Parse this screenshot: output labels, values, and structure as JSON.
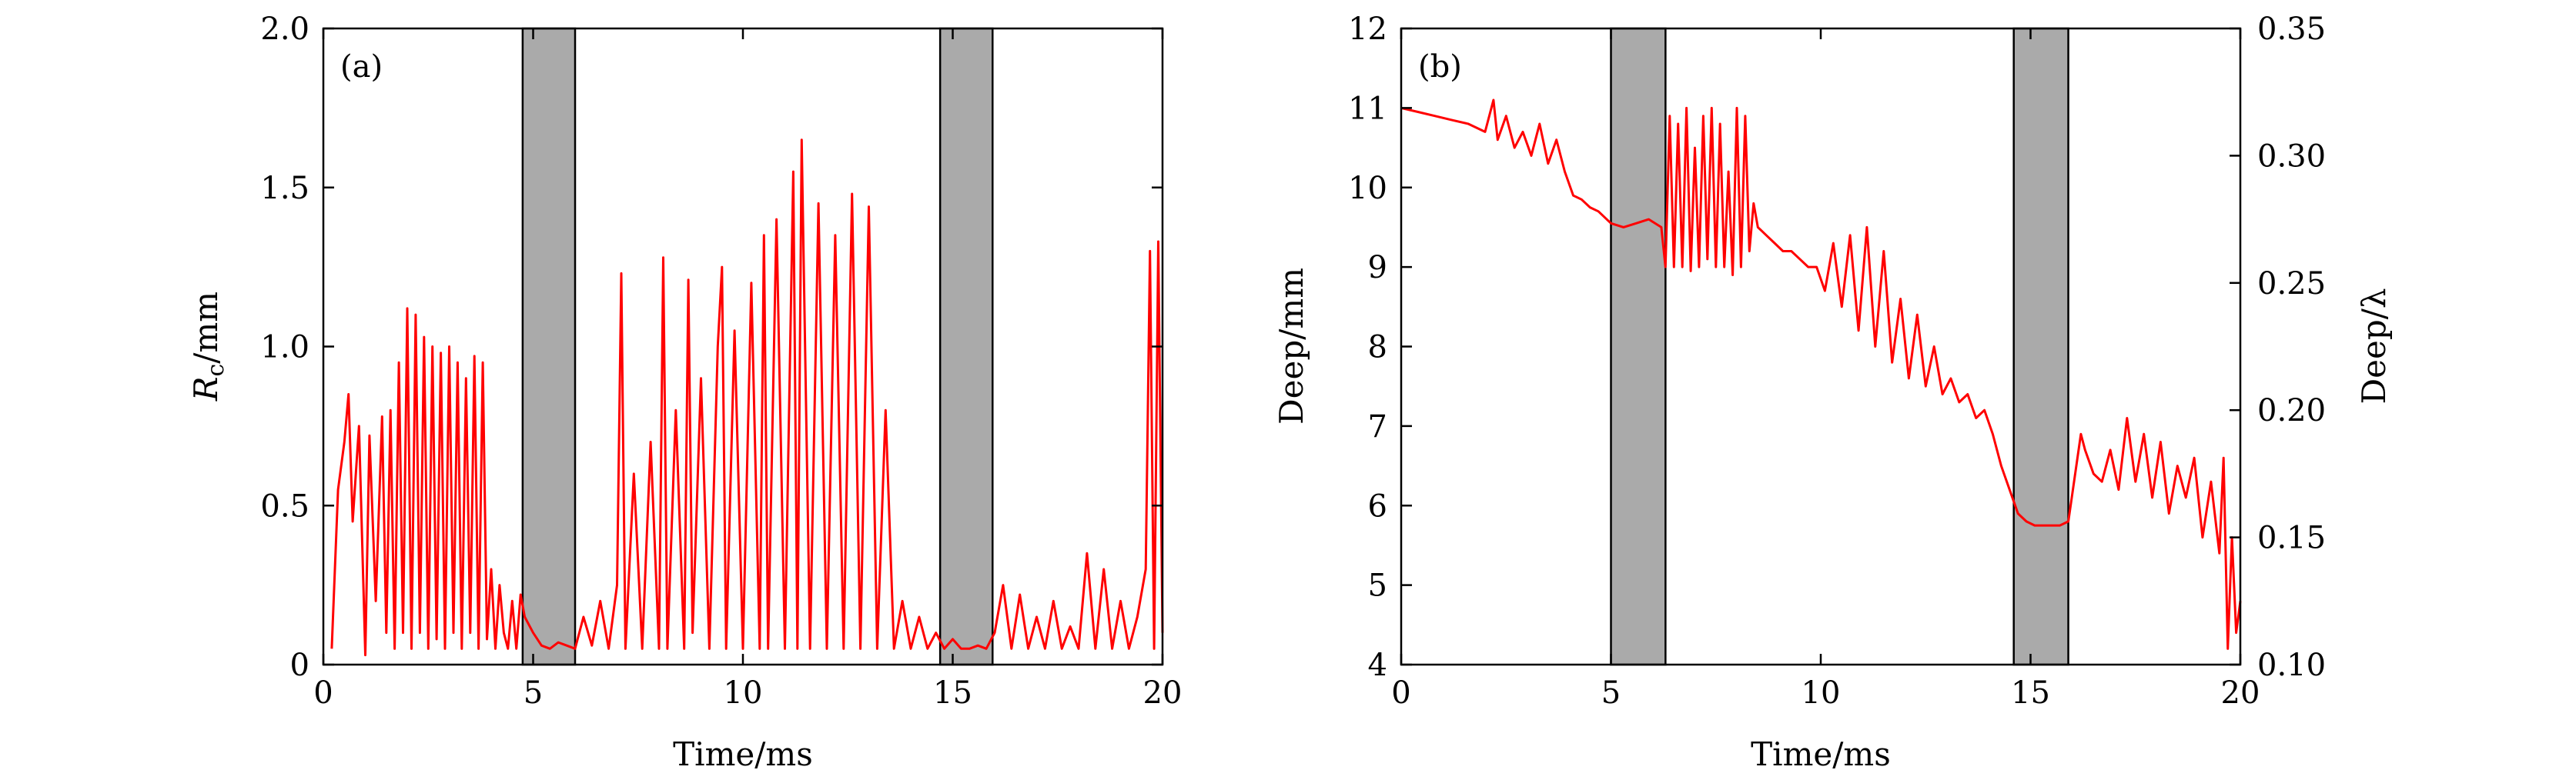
{
  "chart_data": [
    {
      "type": "line",
      "panel_label": "(a)",
      "xlabel": "Time/ms",
      "ylabel_main": "R",
      "ylabel_sub": "c",
      "ylabel_unit": "/mm",
      "xlim": [
        0,
        20
      ],
      "ylim": [
        0,
        2.0
      ],
      "xticks": [
        "0",
        "5",
        "10",
        "15",
        "20"
      ],
      "yticks": [
        "0",
        "0.5",
        "1.0",
        "1.5",
        "2.0"
      ],
      "shaded_regions": [
        [
          4.75,
          6.0
        ],
        [
          14.7,
          15.95
        ]
      ],
      "grid": false,
      "series": [
        {
          "color": "#ff0000",
          "x": [
            0.2,
            0.35,
            0.5,
            0.6,
            0.7,
            0.85,
            1.0,
            1.1,
            1.25,
            1.4,
            1.5,
            1.6,
            1.7,
            1.8,
            1.9,
            2.0,
            2.1,
            2.2,
            2.3,
            2.4,
            2.5,
            2.6,
            2.7,
            2.8,
            2.9,
            3.0,
            3.1,
            3.2,
            3.3,
            3.4,
            3.5,
            3.6,
            3.7,
            3.8,
            3.9,
            4.0,
            4.1,
            4.2,
            4.3,
            4.4,
            4.5,
            4.6,
            4.7,
            4.8,
            5.0,
            5.2,
            5.4,
            5.6,
            5.8,
            6.0,
            6.2,
            6.4,
            6.6,
            6.8,
            7.0,
            7.1,
            7.2,
            7.4,
            7.6,
            7.8,
            8.0,
            8.1,
            8.2,
            8.4,
            8.6,
            8.7,
            8.8,
            9.0,
            9.2,
            9.4,
            9.5,
            9.6,
            9.8,
            10.0,
            10.2,
            10.4,
            10.5,
            10.6,
            10.8,
            11.0,
            11.2,
            11.3,
            11.4,
            11.6,
            11.8,
            12.0,
            12.2,
            12.4,
            12.6,
            12.8,
            13.0,
            13.2,
            13.4,
            13.6,
            13.8,
            14.0,
            14.2,
            14.4,
            14.6,
            14.8,
            15.0,
            15.2,
            15.4,
            15.6,
            15.8,
            16.0,
            16.2,
            16.4,
            16.6,
            16.8,
            17.0,
            17.2,
            17.4,
            17.6,
            17.8,
            18.0,
            18.2,
            18.4,
            18.6,
            18.8,
            19.0,
            19.2,
            19.4,
            19.6,
            19.7,
            19.8,
            19.9,
            20.0
          ],
          "y": [
            0.05,
            0.55,
            0.7,
            0.85,
            0.45,
            0.75,
            0.03,
            0.72,
            0.2,
            0.78,
            0.1,
            0.8,
            0.05,
            0.95,
            0.1,
            1.12,
            0.05,
            1.1,
            0.1,
            1.03,
            0.05,
            1.0,
            0.08,
            0.98,
            0.05,
            1.0,
            0.1,
            0.95,
            0.05,
            0.9,
            0.1,
            0.97,
            0.05,
            0.95,
            0.08,
            0.3,
            0.05,
            0.25,
            0.1,
            0.05,
            0.2,
            0.05,
            0.22,
            0.15,
            0.1,
            0.06,
            0.05,
            0.07,
            0.06,
            0.05,
            0.15,
            0.06,
            0.2,
            0.05,
            0.25,
            1.23,
            0.05,
            0.6,
            0.05,
            0.7,
            0.05,
            1.28,
            0.05,
            0.8,
            0.05,
            1.21,
            0.1,
            0.9,
            0.05,
            1.0,
            1.25,
            0.05,
            1.05,
            0.05,
            1.2,
            0.05,
            1.35,
            0.05,
            1.4,
            0.05,
            1.55,
            0.05,
            1.65,
            0.05,
            1.45,
            0.05,
            1.35,
            0.05,
            1.48,
            0.05,
            1.44,
            0.05,
            0.8,
            0.05,
            0.2,
            0.05,
            0.15,
            0.05,
            0.1,
            0.05,
            0.08,
            0.05,
            0.05,
            0.06,
            0.05,
            0.1,
            0.25,
            0.05,
            0.22,
            0.05,
            0.15,
            0.05,
            0.2,
            0.05,
            0.12,
            0.05,
            0.35,
            0.05,
            0.3,
            0.05,
            0.2,
            0.05,
            0.15,
            0.3,
            1.3,
            0.05,
            1.33,
            0.1
          ]
        }
      ]
    },
    {
      "type": "line",
      "panel_label": "(b)",
      "xlabel": "Time/ms",
      "ylabel_left": "Deep/mm",
      "ylabel_right": "Deep/λ",
      "xlim": [
        0,
        20
      ],
      "ylim_left": [
        4,
        12
      ],
      "ylim_right": [
        0.1,
        0.35
      ],
      "xticks": [
        "0",
        "5",
        "10",
        "15",
        "20"
      ],
      "yticks_left": [
        "4",
        "5",
        "6",
        "7",
        "8",
        "9",
        "10",
        "11",
        "12"
      ],
      "yticks_right": [
        "0.10",
        "0.15",
        "0.20",
        "0.25",
        "0.30",
        "0.35"
      ],
      "shaded_regions": [
        [
          5.0,
          6.3
        ],
        [
          14.6,
          15.9
        ]
      ],
      "grid": false,
      "series": [
        {
          "color": "#ff0000",
          "x": [
            0.0,
            0.4,
            0.8,
            1.2,
            1.6,
            2.0,
            2.2,
            2.3,
            2.5,
            2.7,
            2.9,
            3.1,
            3.3,
            3.5,
            3.7,
            3.9,
            4.1,
            4.3,
            4.5,
            4.7,
            5.0,
            5.3,
            5.6,
            5.9,
            6.2,
            6.3,
            6.4,
            6.5,
            6.6,
            6.7,
            6.8,
            6.9,
            7.0,
            7.1,
            7.2,
            7.3,
            7.4,
            7.5,
            7.6,
            7.7,
            7.8,
            7.9,
            8.0,
            8.1,
            8.2,
            8.3,
            8.4,
            8.5,
            8.7,
            8.9,
            9.1,
            9.3,
            9.5,
            9.7,
            9.9,
            10.1,
            10.3,
            10.5,
            10.7,
            10.9,
            11.1,
            11.3,
            11.5,
            11.7,
            11.9,
            12.1,
            12.3,
            12.5,
            12.7,
            12.9,
            13.1,
            13.3,
            13.5,
            13.7,
            13.9,
            14.1,
            14.3,
            14.5,
            14.7,
            14.9,
            15.1,
            15.4,
            15.7,
            15.9,
            16.2,
            16.3,
            16.5,
            16.7,
            16.9,
            17.1,
            17.3,
            17.5,
            17.7,
            17.9,
            18.1,
            18.3,
            18.5,
            18.7,
            18.9,
            19.1,
            19.3,
            19.5,
            19.6,
            19.7,
            19.8,
            19.9,
            20.0
          ],
          "y": [
            11.0,
            10.95,
            10.9,
            10.85,
            10.8,
            10.7,
            11.1,
            10.6,
            10.9,
            10.5,
            10.7,
            10.4,
            10.8,
            10.3,
            10.6,
            10.2,
            9.9,
            9.85,
            9.75,
            9.7,
            9.55,
            9.5,
            9.55,
            9.6,
            9.5,
            9.0,
            10.9,
            9.0,
            10.8,
            9.0,
            11.0,
            8.95,
            10.5,
            9.0,
            10.9,
            9.1,
            11.0,
            9.0,
            10.8,
            9.0,
            10.2,
            8.9,
            11.0,
            9.0,
            10.9,
            9.2,
            9.8,
            9.5,
            9.4,
            9.3,
            9.2,
            9.2,
            9.1,
            9.0,
            9.0,
            8.7,
            9.3,
            8.5,
            9.4,
            8.2,
            9.5,
            8.0,
            9.2,
            7.8,
            8.6,
            7.6,
            8.4,
            7.5,
            8.0,
            7.4,
            7.6,
            7.3,
            7.4,
            7.1,
            7.2,
            6.9,
            6.5,
            6.2,
            5.9,
            5.8,
            5.75,
            5.75,
            5.75,
            5.8,
            6.9,
            6.7,
            6.4,
            6.3,
            6.7,
            6.2,
            7.1,
            6.3,
            6.9,
            6.1,
            6.8,
            5.9,
            6.5,
            6.1,
            6.6,
            5.6,
            6.3,
            5.4,
            6.6,
            4.2,
            5.6,
            4.4,
            4.8
          ]
        }
      ]
    }
  ]
}
